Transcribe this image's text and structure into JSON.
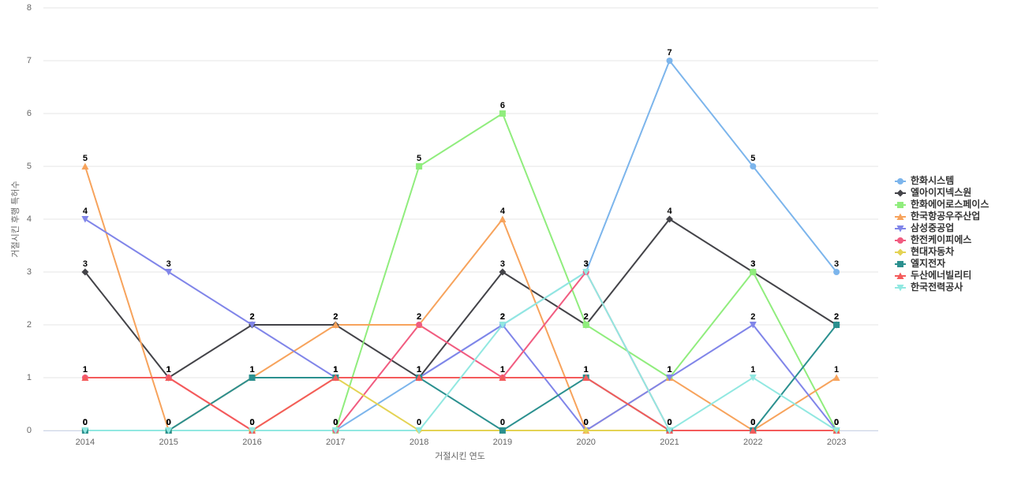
{
  "chart_data": {
    "type": "line",
    "x_label": "거절시킨 연도",
    "y_label": "거절시킨 후행 특허수",
    "categories": [
      "2014",
      "2015",
      "2016",
      "2017",
      "2018",
      "2019",
      "2020",
      "2021",
      "2022",
      "2023"
    ],
    "ylim": [
      0,
      8
    ],
    "yticks": [
      0,
      1,
      2,
      3,
      4,
      5,
      6,
      7,
      8
    ],
    "grid": true,
    "legend": "right",
    "series": [
      {
        "name": "한화시스템",
        "color": "#7cb5ec",
        "marker": "circle",
        "values": [
          0,
          0,
          0,
          0,
          1,
          2,
          3,
          7,
          5,
          3
        ]
      },
      {
        "name": "엘아이지넥스원",
        "color": "#434348",
        "marker": "diamond",
        "values": [
          3,
          1,
          2,
          2,
          1,
          3,
          2,
          4,
          3,
          2
        ]
      },
      {
        "name": "한화에어로스페이스",
        "color": "#90ed7d",
        "marker": "square",
        "values": [
          0,
          0,
          0,
          0,
          5,
          6,
          2,
          1,
          3,
          0
        ]
      },
      {
        "name": "한국항공우주산업",
        "color": "#f7a35c",
        "marker": "triangle",
        "values": [
          5,
          0,
          1,
          2,
          2,
          4,
          0,
          1,
          0,
          1
        ]
      },
      {
        "name": "삼성중공업",
        "color": "#8085e9",
        "marker": "triangle-down",
        "values": [
          4,
          3,
          2,
          1,
          1,
          2,
          0,
          1,
          2,
          0
        ]
      },
      {
        "name": "한전케이피에스",
        "color": "#f15c80",
        "marker": "circle",
        "values": [
          1,
          1,
          0,
          0,
          2,
          1,
          3,
          0,
          0,
          0
        ]
      },
      {
        "name": "현대자동차",
        "color": "#e4d354",
        "marker": "diamond",
        "values": [
          0,
          0,
          0,
          1,
          0,
          0,
          0,
          0,
          0,
          0
        ]
      },
      {
        "name": "엘지전자",
        "color": "#2b908f",
        "marker": "square",
        "values": [
          0,
          0,
          1,
          1,
          1,
          0,
          1,
          0,
          0,
          2
        ]
      },
      {
        "name": "두산에너빌리티",
        "color": "#f45b5b",
        "marker": "triangle",
        "values": [
          1,
          1,
          0,
          1,
          1,
          1,
          1,
          0,
          0,
          0
        ]
      },
      {
        "name": "한국전력공사",
        "color": "#91e8e1",
        "marker": "triangle-down",
        "values": [
          0,
          0,
          0,
          0,
          0,
          2,
          3,
          0,
          1,
          0
        ]
      }
    ]
  }
}
